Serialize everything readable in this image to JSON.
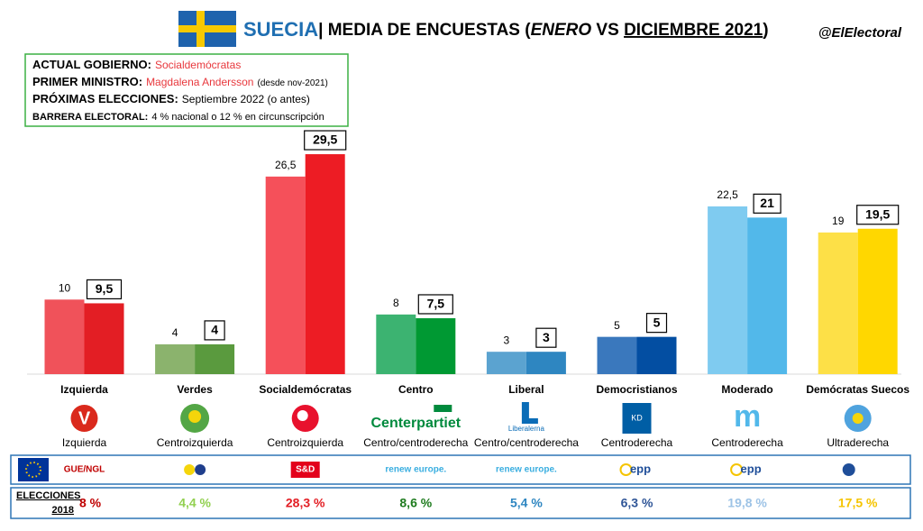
{
  "chart_data": {
    "type": "bar",
    "country": "SUECIA",
    "title_parts": [
      "| MEDIA DE ENCUESTAS (",
      " VS ",
      ")"
    ],
    "handle": "@ElElectoral",
    "info": [
      {
        "label": "ACTUAL GOBIERNO:",
        "value": "Socialdemócratas"
      },
      {
        "label": "PRIMER MINISTRO:",
        "value": "Magdalena Andersson",
        "note": "(desde nov-2021)"
      },
      {
        "label": "PRÓXIMAS ELECCIONES:",
        "value": "Septiembre 2022 (o antes)"
      },
      {
        "label": "BARRERA ELECTORAL:",
        "value": "4 % nacional o 12 % en circunscripción"
      }
    ],
    "categories": [
      "Izquierda",
      "Verdes",
      "Socialdemócratas",
      "Centro",
      "Liberal",
      "Democristianos",
      "Moderado",
      "Demócratas Suecos"
    ],
    "series": [
      {
        "name": "ENERO",
        "values": [
          10,
          4,
          26.5,
          8,
          3,
          5,
          22.5,
          19
        ],
        "value_labels": [
          "10",
          "4",
          "26,5",
          "8",
          "3",
          "5",
          "22,5",
          "19"
        ],
        "colors": [
          "#f0525a",
          "#8bb36d",
          "#f5505a",
          "#3cb371",
          "#5ba3d0",
          "#3a78bd",
          "#7fcbf0",
          "#fde047"
        ]
      },
      {
        "name": "DICIEMBRE 2021",
        "values": [
          9.5,
          4,
          29.5,
          7.5,
          3,
          5,
          21,
          19.5
        ],
        "value_labels": [
          "9,5",
          "4",
          "29,5",
          "7,5",
          "3",
          "5",
          "21",
          "19,5"
        ],
        "colors": [
          "#e31e24",
          "#5a9a3e",
          "#ed1c24",
          "#009933",
          "#2e86c1",
          "#034ea2",
          "#52b8ea",
          "#ffd700"
        ]
      }
    ],
    "logos": [
      "V",
      null,
      null,
      "Centerpartiet",
      "Liberalerna",
      "KD",
      "m",
      null
    ],
    "ideologies": [
      "Izquierda",
      "Centroizquierda",
      "Centroizquierda",
      "Centro/centroderecha",
      "Centro/centroderecha",
      "Centroderecha",
      "Centroderecha",
      "Ultraderecha"
    ],
    "eu_groups": [
      "GUE/NGL",
      null,
      "S&D",
      "renew europe.",
      "renew europe.",
      "epp",
      "epp",
      null
    ],
    "elections": {
      "label_parts": [
        "ELECCIONES",
        "2018"
      ],
      "results": [
        "8 %",
        "4,4 %",
        "28,3 %",
        "8,6 %",
        "5,4 %",
        "6,3 %",
        "19,8 %",
        "17,5 %"
      ],
      "colors": [
        "#c00000",
        "#92d050",
        "#e31e24",
        "#1e7b1e",
        "#2e86c1",
        "#2f5597",
        "#9dc3e6",
        "#f5c400"
      ]
    }
  }
}
